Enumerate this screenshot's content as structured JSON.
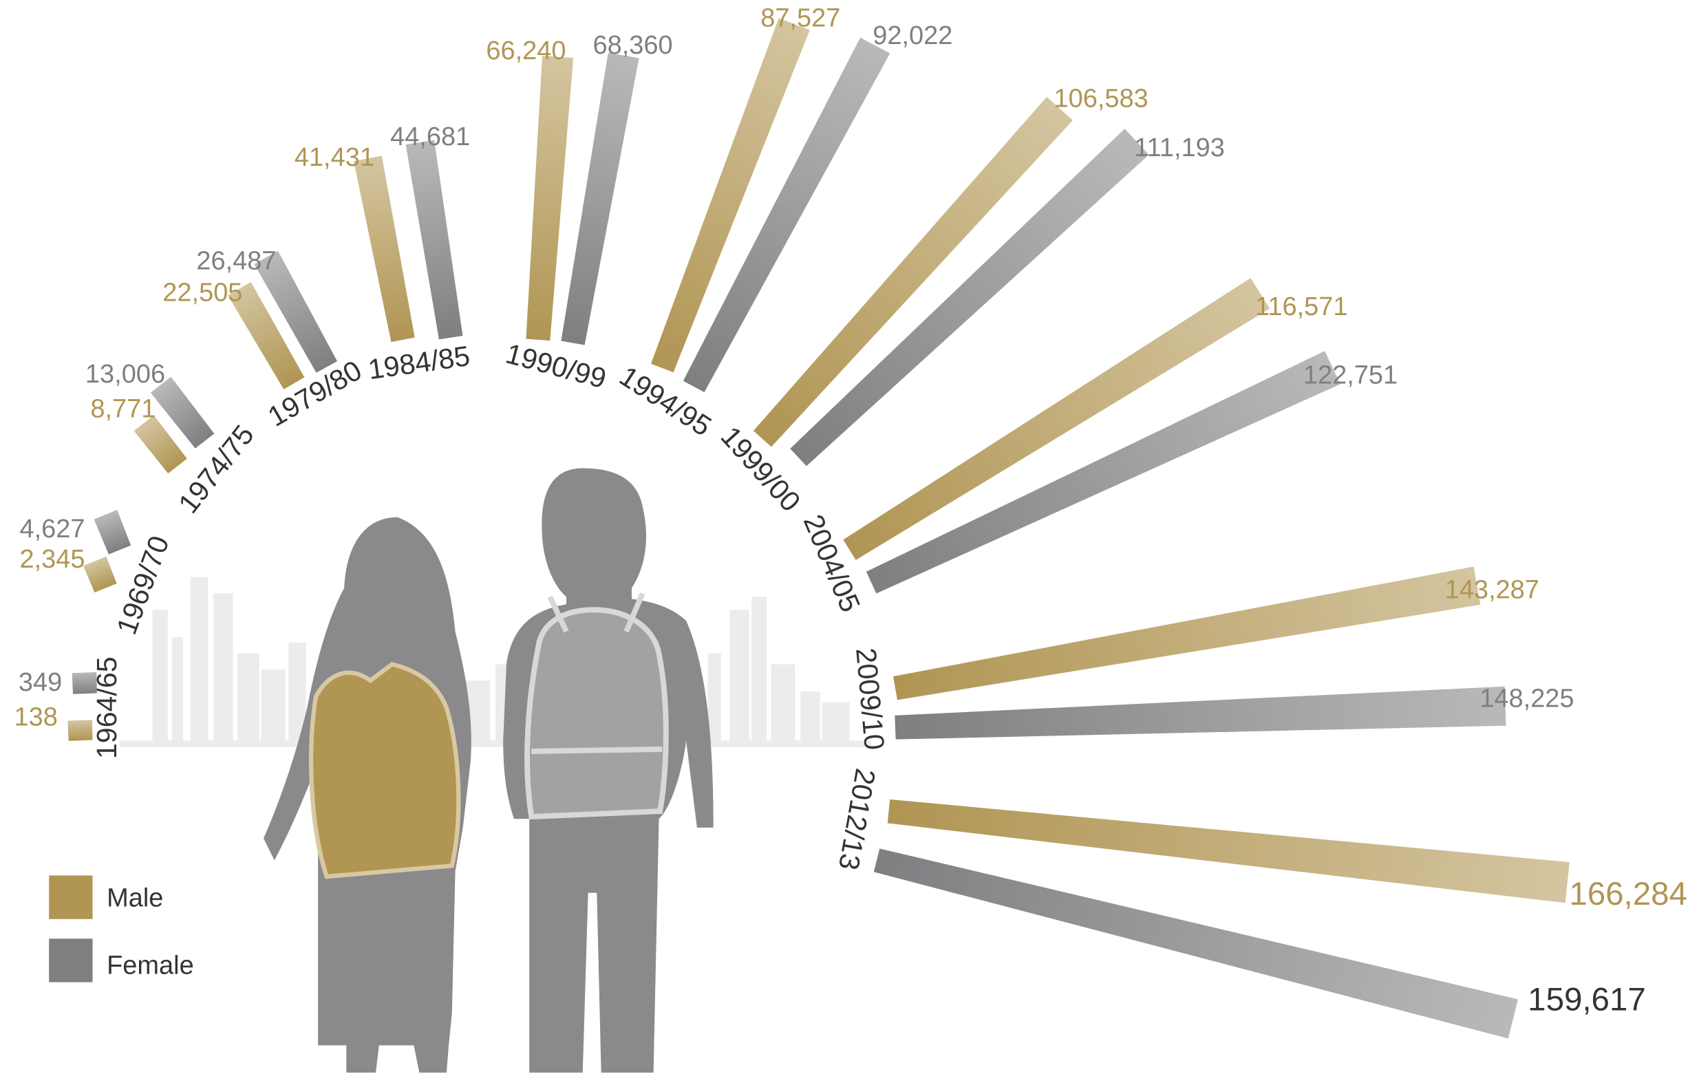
{
  "chart_data": {
    "type": "radial-bar",
    "categories": [
      "1964/65",
      "1969/70",
      "1974/75",
      "1979/80",
      "1984/85",
      "1990/99",
      "1994/95",
      "1999/00",
      "2004/05",
      "2009/10",
      "2012/13"
    ],
    "series": [
      {
        "name": "Male",
        "color": "#b09553",
        "values": [
          138,
          2345,
          8771,
          22505,
          41431,
          66240,
          87527,
          106583,
          116571,
          143287,
          166284
        ],
        "value_labels": [
          "138",
          "2,345",
          "8,771",
          "22,505",
          "41,431",
          "66,240",
          "87,527",
          "106,583",
          "116,571",
          "143,287",
          "166,284"
        ]
      },
      {
        "name": "Female",
        "color": "#7f7f82",
        "values": [
          349,
          4627,
          13006,
          26487,
          44681,
          68360,
          92022,
          111193,
          122751,
          148225,
          159617
        ],
        "value_labels": [
          "349",
          "4,627",
          "13,006",
          "26,487",
          "44,681",
          "68,360",
          "92,022",
          "111,193",
          "122,751",
          "148,225",
          "159,617"
        ]
      }
    ]
  }
}
